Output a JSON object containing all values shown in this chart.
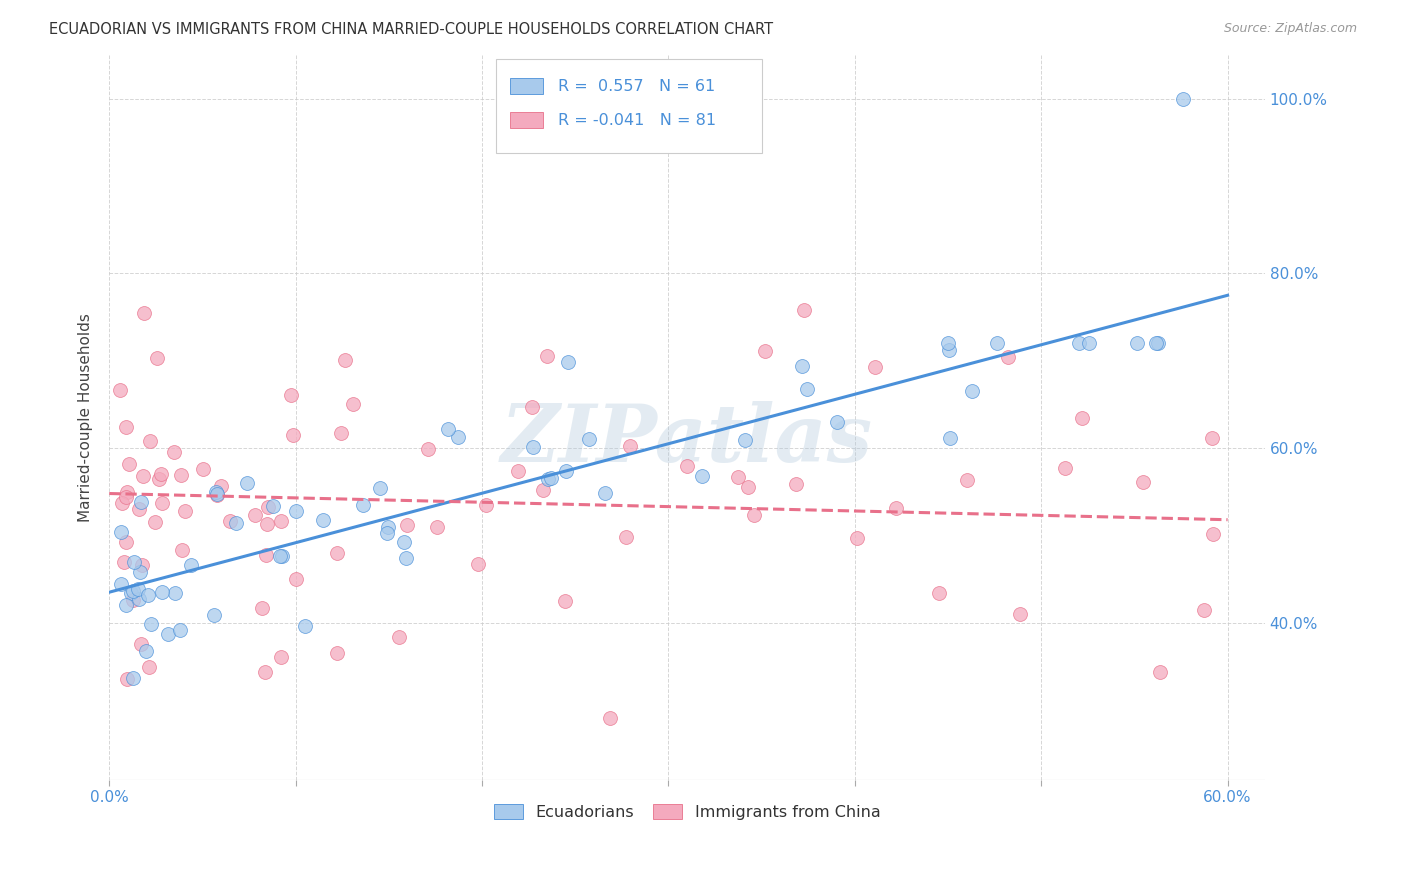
{
  "title": "ECUADORIAN VS IMMIGRANTS FROM CHINA MARRIED-COUPLE HOUSEHOLDS CORRELATION CHART",
  "source": "Source: ZipAtlas.com",
  "ylabel": "Married-couple Households",
  "xlim": [
    0.0,
    0.62
  ],
  "ylim": [
    0.22,
    1.05
  ],
  "xtick_values": [
    0.0,
    0.1,
    0.2,
    0.3,
    0.4,
    0.5,
    0.6
  ],
  "xtick_edge_labels": [
    "0.0%",
    "60.0%"
  ],
  "ytick_values": [
    0.4,
    0.6,
    0.8,
    1.0
  ],
  "ytick_labels": [
    "40.0%",
    "60.0%",
    "80.0%",
    "100.0%"
  ],
  "blue_R": "0.557",
  "blue_N": "61",
  "pink_R": "-0.041",
  "pink_N": "81",
  "blue_color": "#A8CAEC",
  "pink_color": "#F4AABE",
  "blue_line_color": "#4A90D9",
  "pink_line_color": "#E8708A",
  "legend_labels": [
    "Ecuadorians",
    "Immigrants from China"
  ],
  "blue_line_x": [
    0.0,
    0.6
  ],
  "blue_line_y": [
    0.435,
    0.775
  ],
  "pink_line_x": [
    0.0,
    0.6
  ],
  "pink_line_y": [
    0.548,
    0.518
  ],
  "background_color": "#FFFFFF",
  "grid_color": "#CCCCCC",
  "watermark_text": "ZIPatlas",
  "watermark_color": "#B0C8DC",
  "watermark_alpha": 0.35,
  "text_color": "#4A90D9",
  "title_color": "#333333",
  "source_color": "#999999"
}
